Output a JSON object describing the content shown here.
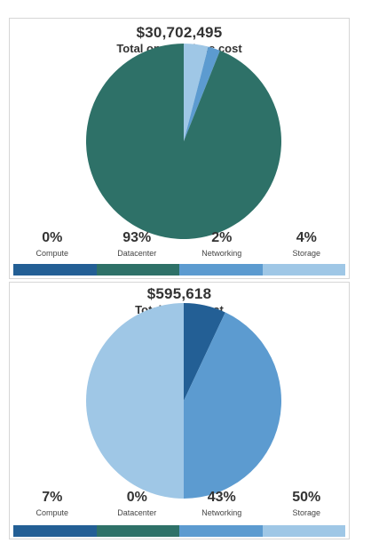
{
  "colors": {
    "compute": "#235f95",
    "datacenter": "#2e7168",
    "networking": "#5c9bd0",
    "storage": "#9fc7e6"
  },
  "chart_data": [
    {
      "type": "pie",
      "title": "$30,702,495",
      "subtitle": "Total on-premises cost",
      "slice_order": [
        "Storage",
        "Networking",
        "Datacenter",
        "Compute"
      ],
      "categories": [
        "Compute",
        "Datacenter",
        "Networking",
        "Storage"
      ],
      "values": [
        0,
        93,
        2,
        4
      ],
      "value_labels": [
        "0%",
        "93%",
        "2%",
        "4%"
      ]
    },
    {
      "type": "pie",
      "title": "$595,618",
      "subtitle": "Total Azure cost",
      "slice_order": [
        "Compute",
        "Networking",
        "Storage",
        "Datacenter"
      ],
      "categories": [
        "Compute",
        "Datacenter",
        "Networking",
        "Storage"
      ],
      "values": [
        7,
        0,
        43,
        50
      ],
      "value_labels": [
        "7%",
        "0%",
        "43%",
        "50%"
      ]
    }
  ]
}
